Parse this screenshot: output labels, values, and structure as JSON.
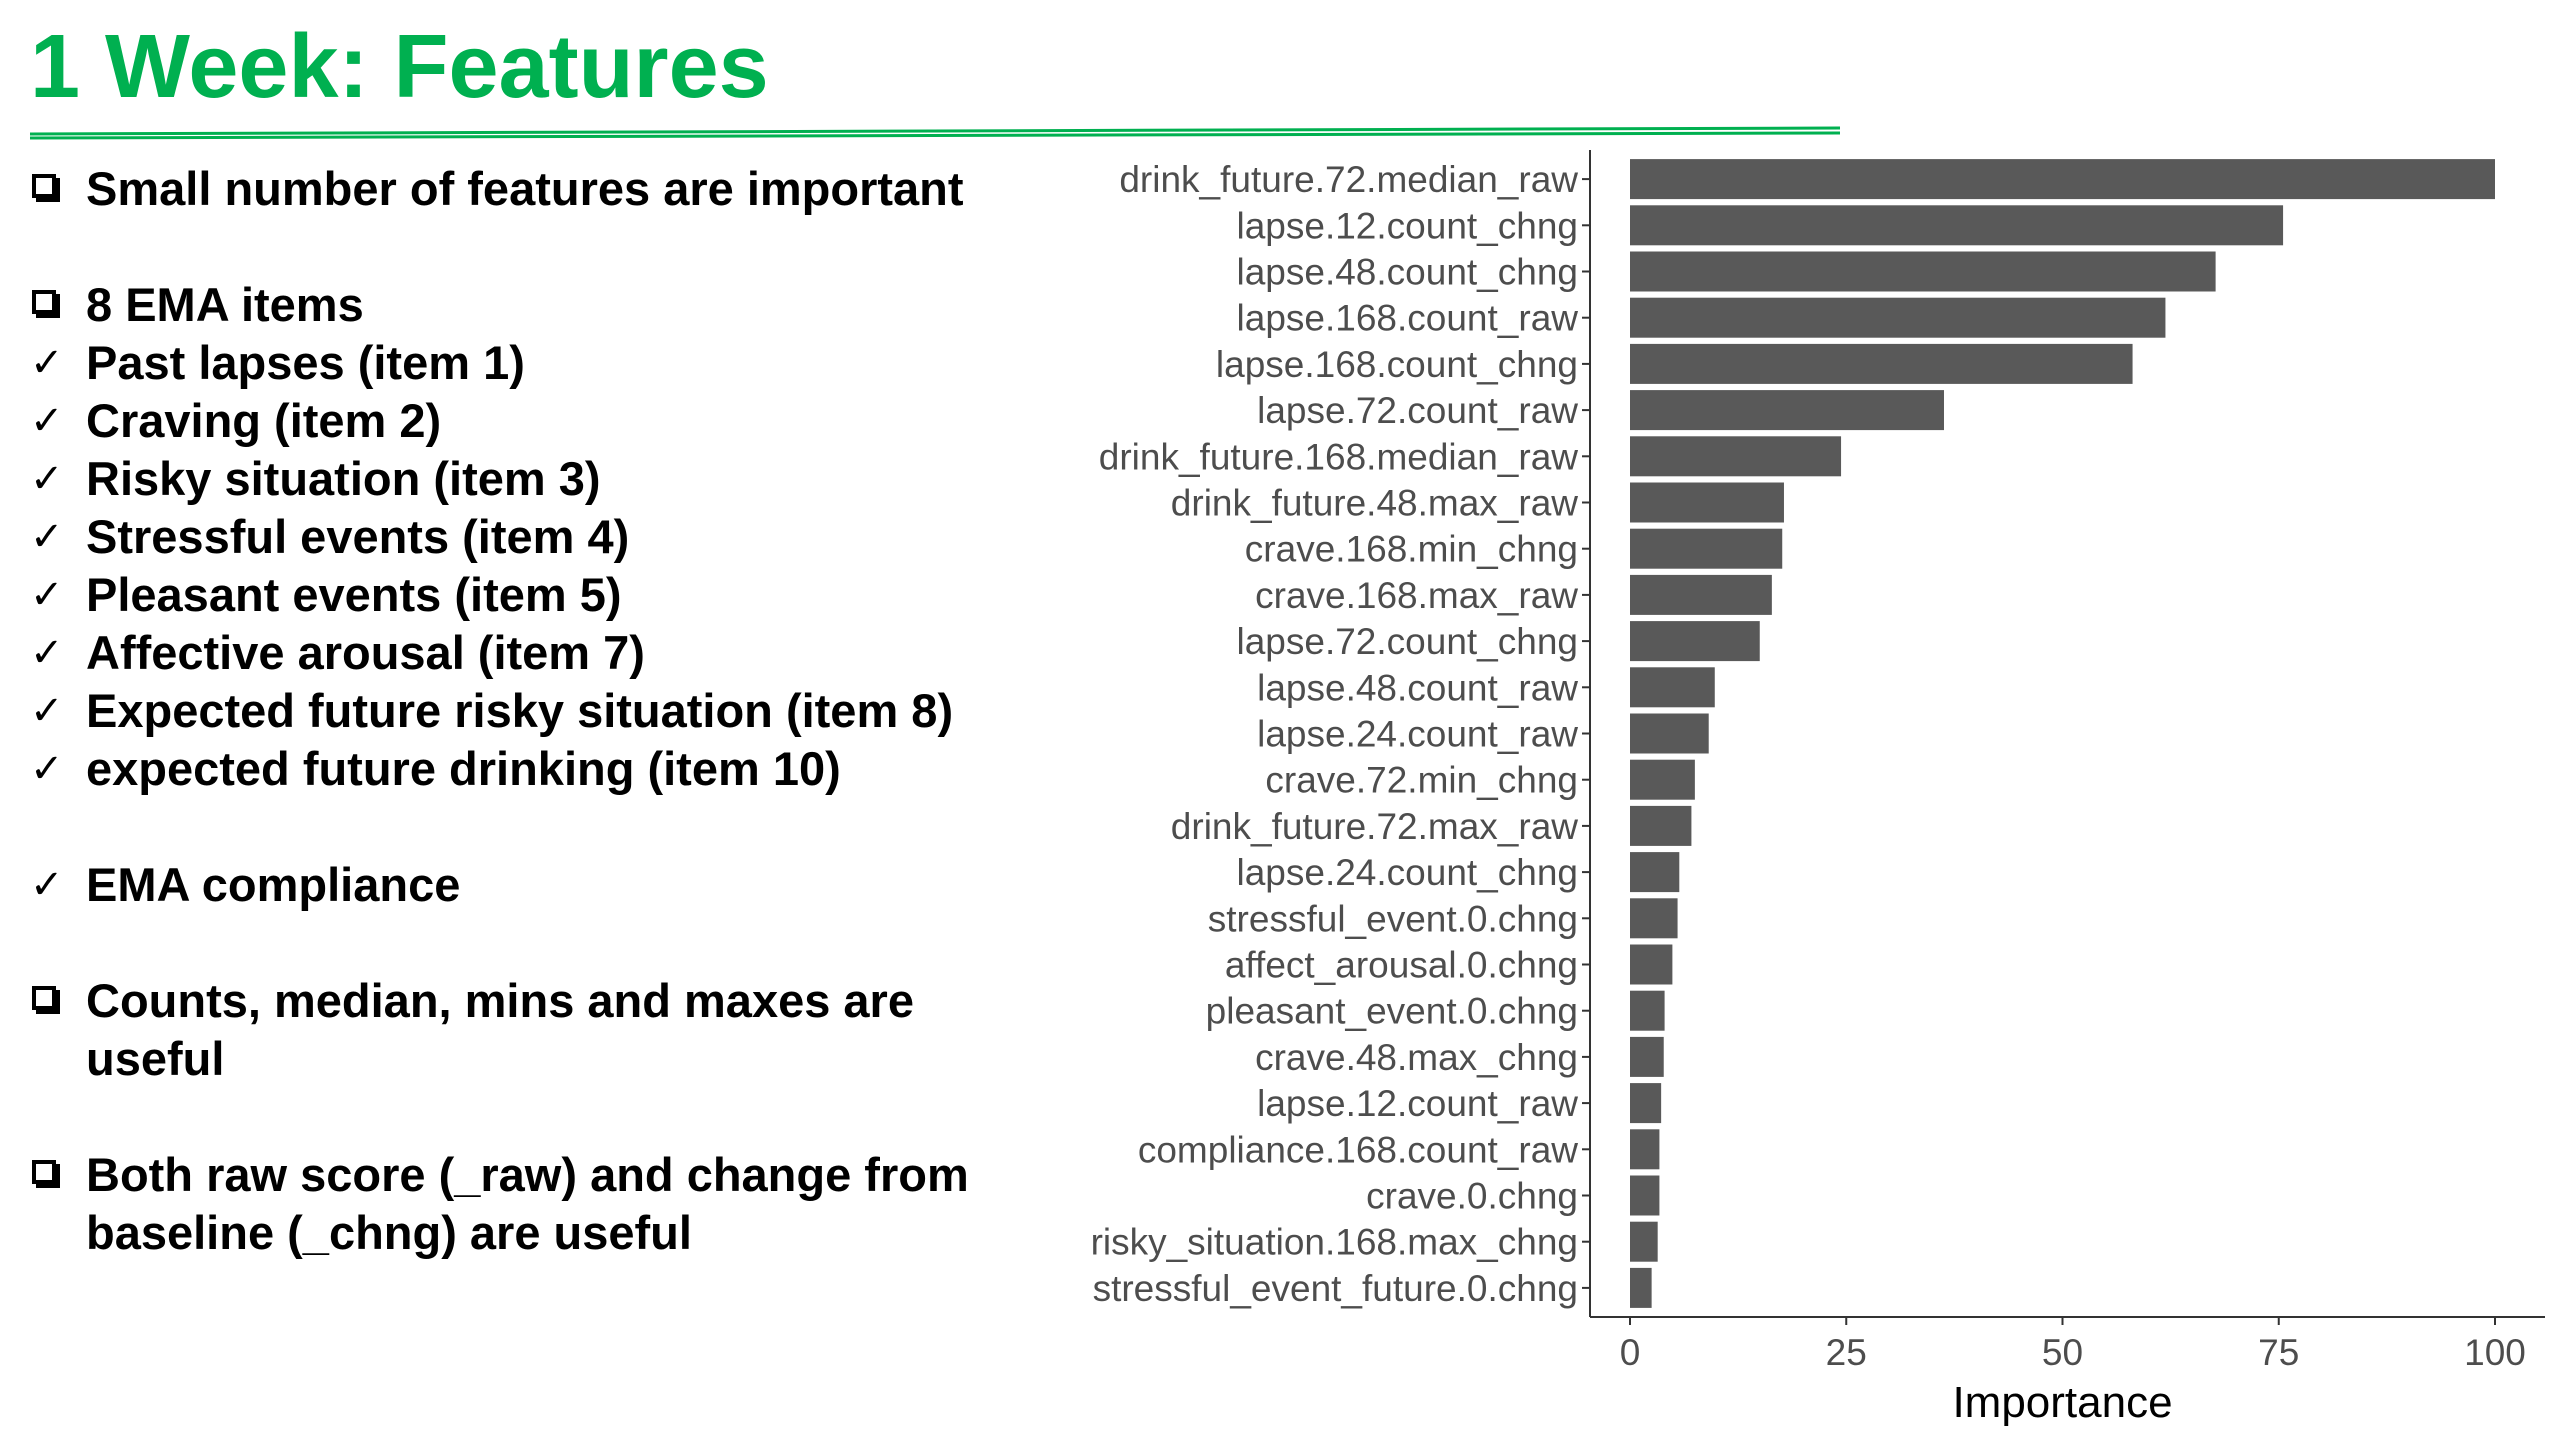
{
  "page": {
    "title": "1 Week: Features",
    "accent_color": "#00B050"
  },
  "bullets": [
    {
      "marker": "box",
      "text": "Small number of features are important",
      "gap_before": false
    },
    {
      "marker": "box",
      "text": "8 EMA items",
      "gap_before": true
    },
    {
      "marker": "check",
      "text": "Past lapses (item 1)",
      "gap_before": false
    },
    {
      "marker": "check",
      "text": "Craving (item 2)",
      "gap_before": false
    },
    {
      "marker": "check",
      "text": "Risky situation (item 3)",
      "gap_before": false
    },
    {
      "marker": "check",
      "text": "Stressful events (item 4)",
      "gap_before": false
    },
    {
      "marker": "check",
      "text": "Pleasant events (item 5)",
      "gap_before": false
    },
    {
      "marker": "check",
      "text": "Affective arousal (item 7)",
      "gap_before": false
    },
    {
      "marker": "check",
      "text": "Expected future risky situation (item 8)",
      "gap_before": false
    },
    {
      "marker": "check",
      "text": "expected future drinking (item 10)",
      "gap_before": false
    },
    {
      "marker": "check",
      "text": "EMA compliance",
      "gap_before": true
    },
    {
      "marker": "box",
      "text": "Counts, median, mins and maxes are useful",
      "gap_before": true
    },
    {
      "marker": "box",
      "text": "Both raw score (_raw) and change from baseline (_chng) are useful",
      "gap_before": true
    }
  ],
  "chart_data": {
    "type": "bar",
    "orientation": "horizontal",
    "title": "",
    "xlabel": "Importance",
    "ylabel": "",
    "xlim": [
      0,
      100
    ],
    "xticks": [
      0,
      25,
      50,
      75,
      100
    ],
    "bar_color": "#595959",
    "grid": false,
    "categories": [
      "drink_future.72.median_raw",
      "lapse.12.count_chng",
      "lapse.48.count_chng",
      "lapse.168.count_raw",
      "lapse.168.count_chng",
      "lapse.72.count_raw",
      "drink_future.168.median_raw",
      "drink_future.48.max_raw",
      "crave.168.min_chng",
      "crave.168.max_raw",
      "lapse.72.count_chng",
      "lapse.48.count_raw",
      "lapse.24.count_raw",
      "crave.72.min_chng",
      "drink_future.72.max_raw",
      "lapse.24.count_chng",
      "stressful_event.0.chng",
      "affect_arousal.0.chng",
      "pleasant_event.0.chng",
      "crave.48.max_chng",
      "lapse.12.count_raw",
      "compliance.168.count_raw",
      "crave.0.chng",
      "risky_situation.168.max_chng",
      "stressful_event_future.0.chng"
    ],
    "values": [
      100,
      75.5,
      67.7,
      61.9,
      58.1,
      36.3,
      24.4,
      17.8,
      17.6,
      16.4,
      15.0,
      9.8,
      9.1,
      7.5,
      7.1,
      5.7,
      5.5,
      4.9,
      4.0,
      3.9,
      3.6,
      3.4,
      3.4,
      3.2,
      2.5
    ]
  }
}
